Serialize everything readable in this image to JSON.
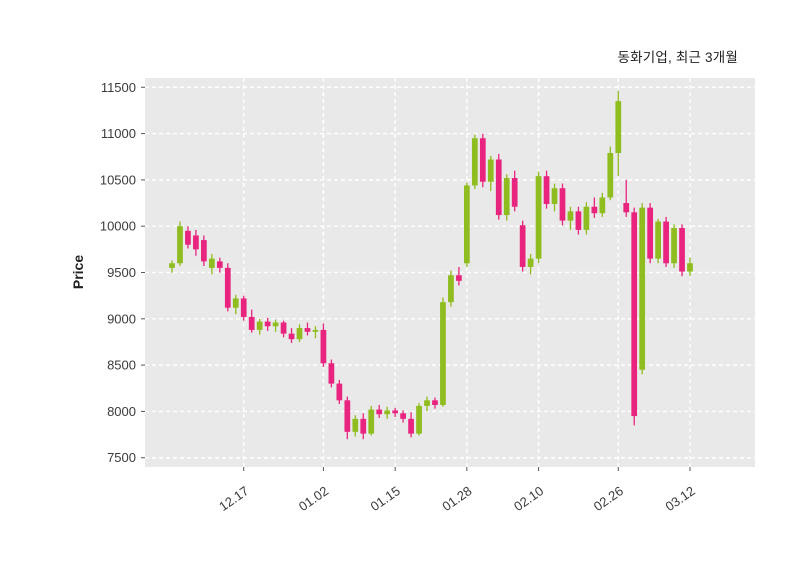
{
  "header": {
    "title": "동화기업, 최근 3개월"
  },
  "chart_data": {
    "type": "candlestick",
    "title": "동화기업, 최근 3개월",
    "xlabel": "",
    "ylabel": "Price",
    "ylim": [
      7400,
      11600
    ],
    "yticks": [
      7500,
      8000,
      8500,
      9000,
      9500,
      10000,
      10500,
      11000,
      11500
    ],
    "xticks": [
      {
        "index": 9,
        "label": "12.17"
      },
      {
        "index": 19,
        "label": "01.02"
      },
      {
        "index": 28,
        "label": "01.15"
      },
      {
        "index": 37,
        "label": "01.28"
      },
      {
        "index": 46,
        "label": "02.10"
      },
      {
        "index": 56,
        "label": "02.26"
      },
      {
        "index": 65,
        "label": "03.12"
      }
    ],
    "legend": "none",
    "grid": "white dashed on gray panel",
    "colors": {
      "up": "#8FBC1E",
      "down": "#E8247F",
      "panel_bg": "#E9E9E9",
      "grid": "#FFFFFF",
      "text": "#3b3b3b",
      "tick": "#555555"
    },
    "candles_format": [
      "open",
      "high",
      "low",
      "close"
    ],
    "candles": [
      [
        9550,
        9630,
        9500,
        9600
      ],
      [
        9600,
        10050,
        9570,
        10000
      ],
      [
        9950,
        10000,
        9760,
        9800
      ],
      [
        9900,
        9960,
        9680,
        9750
      ],
      [
        9850,
        9900,
        9570,
        9620
      ],
      [
        9550,
        9700,
        9480,
        9650
      ],
      [
        9620,
        9660,
        9500,
        9550
      ],
      [
        9550,
        9600,
        9080,
        9120
      ],
      [
        9120,
        9260,
        9050,
        9220
      ],
      [
        9220,
        9250,
        8980,
        9020
      ],
      [
        9020,
        9100,
        8850,
        8880
      ],
      [
        8880,
        9000,
        8830,
        8970
      ],
      [
        8970,
        9010,
        8870,
        8920
      ],
      [
        8920,
        8990,
        8860,
        8960
      ],
      [
        8960,
        8980,
        8800,
        8840
      ],
      [
        8840,
        8900,
        8740,
        8780
      ],
      [
        8780,
        8940,
        8750,
        8900
      ],
      [
        8900,
        8960,
        8820,
        8860
      ],
      [
        8860,
        8920,
        8790,
        8880
      ],
      [
        8880,
        8950,
        8480,
        8520
      ],
      [
        8520,
        8560,
        8260,
        8300
      ],
      [
        8300,
        8340,
        8080,
        8120
      ],
      [
        8120,
        8160,
        7700,
        7780
      ],
      [
        7780,
        7960,
        7730,
        7920
      ],
      [
        7920,
        7980,
        7700,
        7760
      ],
      [
        7760,
        8060,
        7740,
        8020
      ],
      [
        8020,
        8070,
        7930,
        7970
      ],
      [
        7970,
        8050,
        7920,
        8010
      ],
      [
        8010,
        8040,
        7940,
        7980
      ],
      [
        7980,
        8010,
        7880,
        7920
      ],
      [
        7920,
        7990,
        7720,
        7760
      ],
      [
        7760,
        8090,
        7740,
        8060
      ],
      [
        8060,
        8160,
        8000,
        8120
      ],
      [
        8120,
        8150,
        8030,
        8070
      ],
      [
        8070,
        9230,
        8050,
        9180
      ],
      [
        9180,
        9520,
        9130,
        9470
      ],
      [
        9470,
        9560,
        9360,
        9410
      ],
      [
        9600,
        10470,
        9560,
        10440
      ],
      [
        10440,
        10990,
        10400,
        10950
      ],
      [
        10950,
        11000,
        10420,
        10480
      ],
      [
        10480,
        10760,
        10380,
        10720
      ],
      [
        10720,
        10780,
        10070,
        10120
      ],
      [
        10120,
        10560,
        10060,
        10520
      ],
      [
        10520,
        10600,
        10160,
        10210
      ],
      [
        10010,
        10060,
        9510,
        9560
      ],
      [
        9560,
        9700,
        9480,
        9650
      ],
      [
        9650,
        10590,
        9600,
        10540
      ],
      [
        10540,
        10600,
        10190,
        10240
      ],
      [
        10240,
        10460,
        10160,
        10410
      ],
      [
        10410,
        10460,
        10010,
        10060
      ],
      [
        10060,
        10210,
        9960,
        10160
      ],
      [
        10160,
        10210,
        9910,
        9960
      ],
      [
        9960,
        10260,
        9910,
        10210
      ],
      [
        10210,
        10310,
        10090,
        10140
      ],
      [
        10140,
        10360,
        10100,
        10310
      ],
      [
        10310,
        10860,
        10280,
        10790
      ],
      [
        10790,
        11460,
        10540,
        11350
      ],
      [
        10250,
        10500,
        10100,
        10150
      ],
      [
        10150,
        10200,
        7850,
        7950
      ],
      [
        8450,
        10250,
        8400,
        10200
      ],
      [
        10200,
        10250,
        9600,
        9650
      ],
      [
        9650,
        10080,
        9600,
        10050
      ],
      [
        10050,
        10100,
        9560,
        9600
      ],
      [
        9600,
        10020,
        9550,
        9980
      ],
      [
        9980,
        10020,
        9460,
        9510
      ],
      [
        9510,
        9660,
        9460,
        9600
      ]
    ]
  }
}
